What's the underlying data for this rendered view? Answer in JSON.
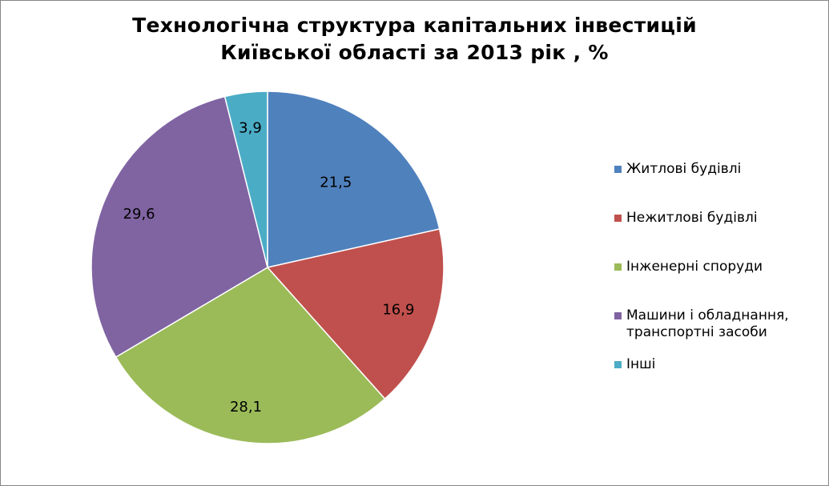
{
  "chart_data": {
    "type": "pie",
    "title_lines": [
      "Технологічна структура капітальних інвестицій",
      "Київської області за 2013 рік , %"
    ],
    "categories": [
      "Житлові будівлі",
      "Нежитлові будівлі",
      "Інженерні споруди",
      "Машини  і обладнання, транспортні засоби",
      "Інші"
    ],
    "values": [
      21.5,
      16.9,
      28.1,
      29.6,
      3.9
    ],
    "data_labels": [
      "21,5",
      "16,9",
      "28,1",
      "29,6",
      "3,9"
    ],
    "colors": [
      "#4F81BD",
      "#C0504D",
      "#9BBB59",
      "#8064A2",
      "#4BACC6"
    ],
    "legend_position": "right",
    "start_angle": "12 o'clock, clockwise"
  },
  "legend": {
    "items": [
      {
        "label": "Житлові будівлі"
      },
      {
        "label": "Нежитлові будівлі"
      },
      {
        "label": "Інженерні споруди"
      },
      {
        "label": "Машини  і обладнання, транспортні засоби"
      },
      {
        "label": "Інші"
      }
    ]
  }
}
